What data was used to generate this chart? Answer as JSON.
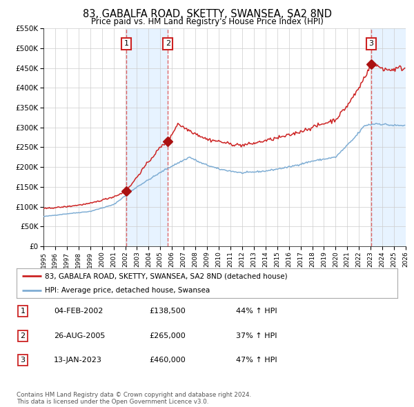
{
  "title": "83, GABALFA ROAD, SKETTY, SWANSEA, SA2 8ND",
  "subtitle": "Price paid vs. HM Land Registry's House Price Index (HPI)",
  "ylim": [
    0,
    550000
  ],
  "yticks": [
    0,
    50000,
    100000,
    150000,
    200000,
    250000,
    300000,
    350000,
    400000,
    450000,
    500000,
    550000
  ],
  "ytick_labels": [
    "£0",
    "£50K",
    "£100K",
    "£150K",
    "£200K",
    "£250K",
    "£300K",
    "£350K",
    "£400K",
    "£450K",
    "£500K",
    "£550K"
  ],
  "xmin_year": 1995,
  "xmax_year": 2026,
  "xticks": [
    1995,
    1996,
    1997,
    1998,
    1999,
    2000,
    2001,
    2002,
    2003,
    2004,
    2005,
    2006,
    2007,
    2008,
    2009,
    2010,
    2011,
    2012,
    2013,
    2014,
    2015,
    2016,
    2017,
    2018,
    2019,
    2020,
    2021,
    2022,
    2023,
    2024,
    2025,
    2026
  ],
  "sale1_x": 2002.09,
  "sale1_y": 138500,
  "sale1_label": "1",
  "sale2_x": 2005.65,
  "sale2_y": 265000,
  "sale2_label": "2",
  "sale3_x": 2023.04,
  "sale3_y": 460000,
  "sale3_label": "3",
  "hpi_line_color": "#7eadd4",
  "price_line_color": "#cc2222",
  "sale_marker_color": "#aa1111",
  "vline_color": "#dd4444",
  "shade_color": "#ddeeff",
  "bg_color": "#ffffff",
  "grid_color": "#cccccc",
  "legend1_label": "83, GABALFA ROAD, SKETTY, SWANSEA, SA2 8ND (detached house)",
  "legend2_label": "HPI: Average price, detached house, Swansea",
  "table_rows": [
    {
      "num": "1",
      "date": "04-FEB-2002",
      "price": "£138,500",
      "change": "44% ↑ HPI"
    },
    {
      "num": "2",
      "date": "26-AUG-2005",
      "price": "£265,000",
      "change": "37% ↑ HPI"
    },
    {
      "num": "3",
      "date": "13-JAN-2023",
      "price": "£460,000",
      "change": "47% ↑ HPI"
    }
  ],
  "footer_text": "Contains HM Land Registry data © Crown copyright and database right 2024.\nThis data is licensed under the Open Government Licence v3.0."
}
